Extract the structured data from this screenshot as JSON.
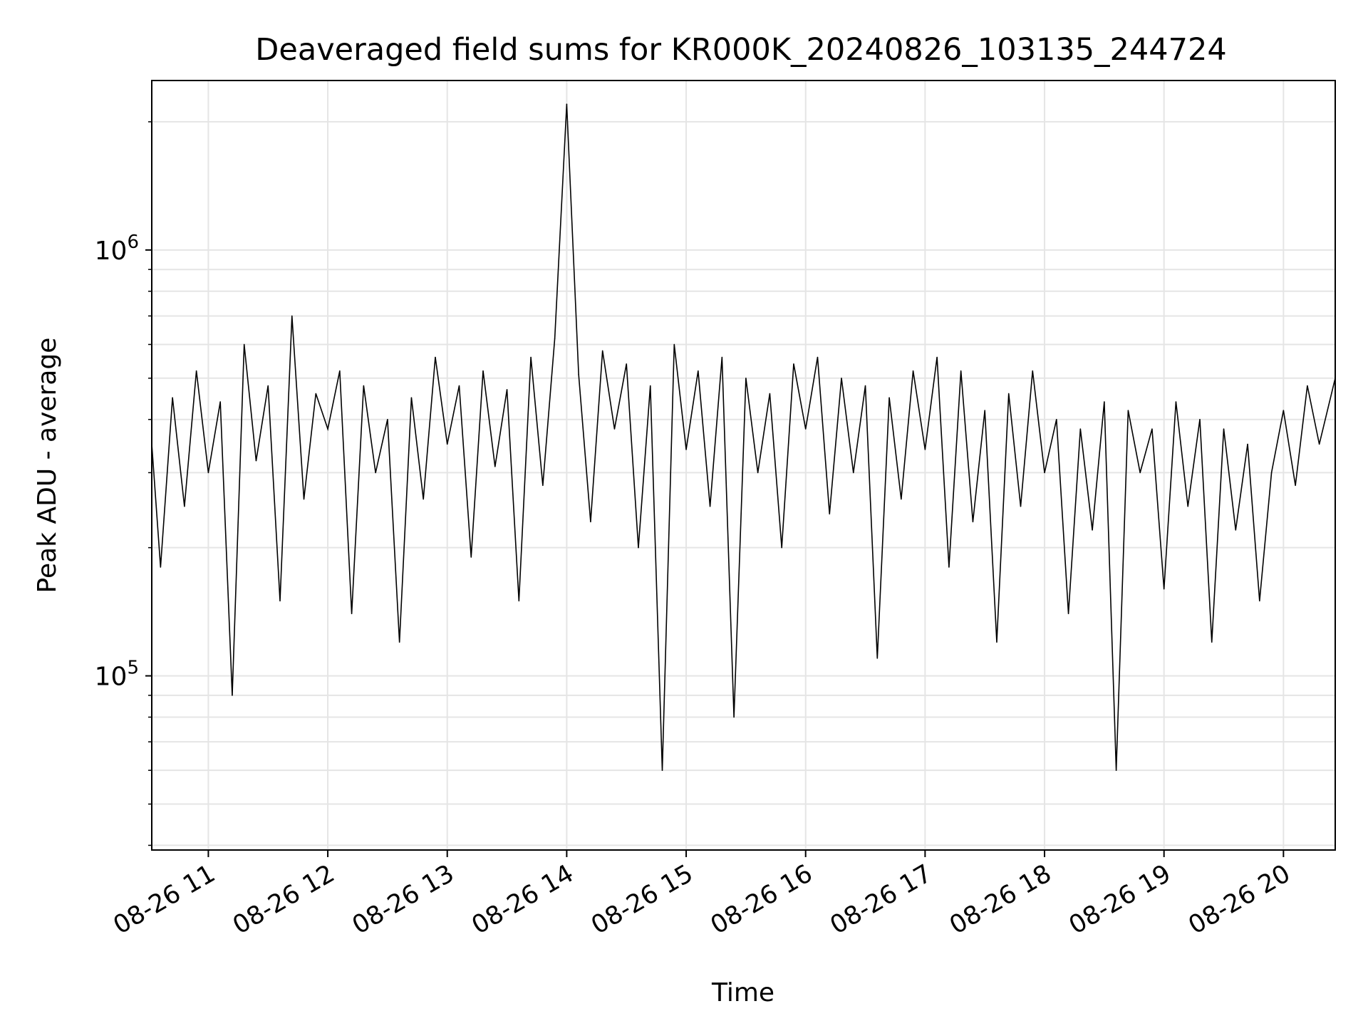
{
  "chart_data": {
    "type": "line",
    "title": "Deaveraged field sums for KR000K_20240826_103135_244724",
    "xlabel": "Time",
    "ylabel": "Peak ADU - average",
    "x_range": [
      "2024-08-26 10:31:35",
      "2024-08-26 20:26:00"
    ],
    "ylim": [
      39000,
      2500000
    ],
    "y_scale": "log",
    "grid": "on (major and minor)",
    "x_ticks": [
      {
        "t": "2024-08-26 11:00",
        "label": "08-26 11"
      },
      {
        "t": "2024-08-26 12:00",
        "label": "08-26 12"
      },
      {
        "t": "2024-08-26 13:00",
        "label": "08-26 13"
      },
      {
        "t": "2024-08-26 14:00",
        "label": "08-26 14"
      },
      {
        "t": "2024-08-26 15:00",
        "label": "08-26 15"
      },
      {
        "t": "2024-08-26 16:00",
        "label": "08-26 16"
      },
      {
        "t": "2024-08-26 17:00",
        "label": "08-26 17"
      },
      {
        "t": "2024-08-26 18:00",
        "label": "08-26 18"
      },
      {
        "t": "2024-08-26 19:00",
        "label": "08-26 19"
      },
      {
        "t": "2024-08-26 20:00",
        "label": "08-26 20"
      }
    ],
    "y_major_ticks": [
      {
        "value": 100000,
        "base": "10",
        "exp": "5"
      },
      {
        "value": 1000000,
        "base": "10",
        "exp": "6"
      }
    ],
    "y_minor_ticks": [
      40000,
      50000,
      60000,
      70000,
      80000,
      90000,
      200000,
      300000,
      400000,
      500000,
      600000,
      700000,
      800000,
      900000,
      2000000
    ],
    "series": [
      {
        "color": "#000000",
        "x": [
          "2024-08-26 10:31:35",
          "2024-08-26 10:36",
          "2024-08-26 10:42",
          "2024-08-26 10:48",
          "2024-08-26 10:54",
          "2024-08-26 11:00",
          "2024-08-26 11:06",
          "2024-08-26 11:12",
          "2024-08-26 11:18",
          "2024-08-26 11:24",
          "2024-08-26 11:30",
          "2024-08-26 11:36",
          "2024-08-26 11:42",
          "2024-08-26 11:48",
          "2024-08-26 11:54",
          "2024-08-26 12:00",
          "2024-08-26 12:06",
          "2024-08-26 12:12",
          "2024-08-26 12:18",
          "2024-08-26 12:24",
          "2024-08-26 12:30",
          "2024-08-26 12:36",
          "2024-08-26 12:42",
          "2024-08-26 12:48",
          "2024-08-26 12:54",
          "2024-08-26 13:00",
          "2024-08-26 13:06",
          "2024-08-26 13:12",
          "2024-08-26 13:18",
          "2024-08-26 13:24",
          "2024-08-26 13:30",
          "2024-08-26 13:36",
          "2024-08-26 13:42",
          "2024-08-26 13:48",
          "2024-08-26 13:54",
          "2024-08-26 14:00",
          "2024-08-26 14:06",
          "2024-08-26 14:12",
          "2024-08-26 14:18",
          "2024-08-26 14:24",
          "2024-08-26 14:30",
          "2024-08-26 14:36",
          "2024-08-26 14:42",
          "2024-08-26 14:48",
          "2024-08-26 14:54",
          "2024-08-26 15:00",
          "2024-08-26 15:06",
          "2024-08-26 15:12",
          "2024-08-26 15:18",
          "2024-08-26 15:24",
          "2024-08-26 15:30",
          "2024-08-26 15:36",
          "2024-08-26 15:42",
          "2024-08-26 15:48",
          "2024-08-26 15:54",
          "2024-08-26 16:00",
          "2024-08-26 16:06",
          "2024-08-26 16:12",
          "2024-08-26 16:18",
          "2024-08-26 16:24",
          "2024-08-26 16:30",
          "2024-08-26 16:36",
          "2024-08-26 16:42",
          "2024-08-26 16:48",
          "2024-08-26 16:54",
          "2024-08-26 17:00",
          "2024-08-26 17:06",
          "2024-08-26 17:12",
          "2024-08-26 17:18",
          "2024-08-26 17:24",
          "2024-08-26 17:30",
          "2024-08-26 17:36",
          "2024-08-26 17:42",
          "2024-08-26 17:48",
          "2024-08-26 17:54",
          "2024-08-26 18:00",
          "2024-08-26 18:06",
          "2024-08-26 18:12",
          "2024-08-26 18:18",
          "2024-08-26 18:24",
          "2024-08-26 18:30",
          "2024-08-26 18:36",
          "2024-08-26 18:42",
          "2024-08-26 18:48",
          "2024-08-26 18:54",
          "2024-08-26 19:00",
          "2024-08-26 19:06",
          "2024-08-26 19:12",
          "2024-08-26 19:18",
          "2024-08-26 19:24",
          "2024-08-26 19:30",
          "2024-08-26 19:36",
          "2024-08-26 19:42",
          "2024-08-26 19:48",
          "2024-08-26 19:54",
          "2024-08-26 20:00",
          "2024-08-26 20:06",
          "2024-08-26 20:12",
          "2024-08-26 20:18",
          "2024-08-26 20:26"
        ],
        "y": [
          350000,
          180000,
          450000,
          250000,
          520000,
          300000,
          440000,
          90000,
          600000,
          320000,
          480000,
          150000,
          700000,
          260000,
          460000,
          380000,
          520000,
          140000,
          480000,
          300000,
          400000,
          120000,
          450000,
          260000,
          560000,
          350000,
          480000,
          190000,
          520000,
          310000,
          470000,
          150000,
          560000,
          280000,
          620000,
          2200000,
          510000,
          230000,
          580000,
          380000,
          540000,
          200000,
          480000,
          60000,
          600000,
          340000,
          520000,
          250000,
          560000,
          80000,
          500000,
          300000,
          460000,
          200000,
          540000,
          380000,
          560000,
          240000,
          500000,
          300000,
          480000,
          110000,
          450000,
          260000,
          520000,
          340000,
          560000,
          180000,
          520000,
          230000,
          420000,
          120000,
          460000,
          250000,
          520000,
          300000,
          400000,
          140000,
          380000,
          220000,
          440000,
          60000,
          420000,
          300000,
          380000,
          160000,
          440000,
          250000,
          400000,
          120000,
          380000,
          220000,
          350000,
          150000,
          300000,
          420000,
          280000,
          480000,
          350000,
          500000
        ]
      }
    ]
  }
}
